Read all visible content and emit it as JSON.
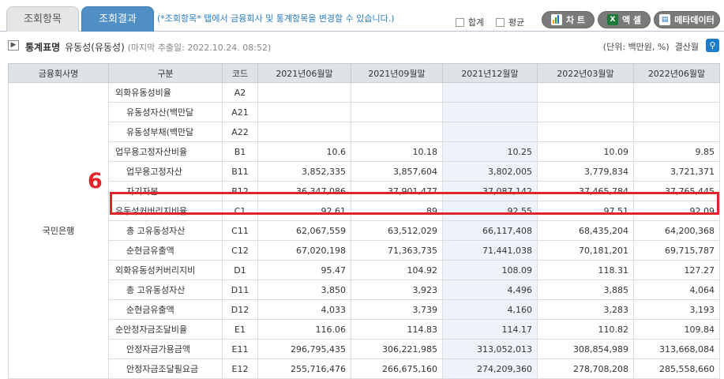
{
  "tabs": [
    "조회항목",
    "조회결과"
  ],
  "hint": "(*조회항목* 탭에서 금융회사 및 통계항목을 변경할 수 있습니다.)",
  "checkboxes": [
    "합계",
    "평균"
  ],
  "buttons": [
    {
      "label": "차 트",
      "icon": "chart-icon"
    },
    {
      "label": "액 셀",
      "icon": "excel-icon"
    },
    {
      "label": "메타데이터",
      "icon": "document-icon"
    }
  ],
  "info": {
    "title": "통계표명",
    "name": "유동성(유동성)",
    "extract": "(마지막 추출일: 2022.10.24. 08:52)",
    "unit": "(단위: 백만원, %)",
    "settle": "결산월"
  },
  "columns": [
    "금융회사명",
    "구분",
    "코드",
    "2021년06월말",
    "2021년09월말",
    "2021년12월말",
    "2022년03월말",
    "2022년06월말"
  ],
  "company": "국민은행",
  "rows": [
    {
      "name": "외화유동성비율",
      "code": "A2",
      "level": 1,
      "v": [
        "",
        "",
        "",
        "",
        ""
      ]
    },
    {
      "name": "유동성자산(백만달",
      "code": "A21",
      "level": 2,
      "v": [
        "",
        "",
        "",
        "",
        ""
      ]
    },
    {
      "name": "유동성부채(백만달",
      "code": "A22",
      "level": 2,
      "v": [
        "",
        "",
        "",
        "",
        ""
      ]
    },
    {
      "name": "업무용고정자산비율",
      "code": "B1",
      "level": 1,
      "v": [
        "10.6",
        "10.18",
        "10.25",
        "10.09",
        "9.85"
      ]
    },
    {
      "name": "업무용고정자산",
      "code": "B11",
      "level": 2,
      "v": [
        "3,852,335",
        "3,857,604",
        "3,802,005",
        "3,779,834",
        "3,721,371"
      ]
    },
    {
      "name": "자기자본",
      "code": "B12",
      "level": 2,
      "v": [
        "36,347,086",
        "37,901,477",
        "37,087,142",
        "37,465,784",
        "37,765,445"
      ]
    },
    {
      "name": "유동성커버리지비율",
      "code": "C1",
      "level": 1,
      "v": [
        "92.61",
        "89",
        "92.55",
        "97.51",
        "92.09"
      ]
    },
    {
      "name": "총 고유동성자산",
      "code": "C11",
      "level": 2,
      "v": [
        "62,067,559",
        "63,512,029",
        "66,117,408",
        "68,435,204",
        "64,200,368"
      ]
    },
    {
      "name": "순현금유출액",
      "code": "C12",
      "level": 2,
      "v": [
        "67,020,198",
        "71,363,735",
        "71,441,038",
        "70,181,201",
        "69,715,787"
      ]
    },
    {
      "name": "외화유동성커버리지비",
      "code": "D1",
      "level": 1,
      "v": [
        "95.47",
        "104.92",
        "108.09",
        "118.31",
        "127.27"
      ]
    },
    {
      "name": "총 고유동성자산",
      "code": "D11",
      "level": 2,
      "v": [
        "3,850",
        "3,923",
        "4,496",
        "3,885",
        "4,064"
      ]
    },
    {
      "name": "순현금유출액",
      "code": "D12",
      "level": 2,
      "v": [
        "4,033",
        "3,739",
        "4,160",
        "3,283",
        "3,193"
      ]
    },
    {
      "name": "순안정자금조달비율",
      "code": "E1",
      "level": 1,
      "v": [
        "116.06",
        "114.83",
        "114.17",
        "110.82",
        "109.84"
      ]
    },
    {
      "name": "안정자금가용금액",
      "code": "E11",
      "level": 2,
      "v": [
        "296,795,435",
        "306,221,985",
        "313,052,013",
        "308,854,989",
        "313,668,084"
      ]
    },
    {
      "name": "안정자금조달필요금",
      "code": "E12",
      "level": 2,
      "v": [
        "255,716,476",
        "266,675,160",
        "274,209,360",
        "278,708,208",
        "285,558,660"
      ]
    }
  ],
  "annotation": {
    "number": "6"
  }
}
